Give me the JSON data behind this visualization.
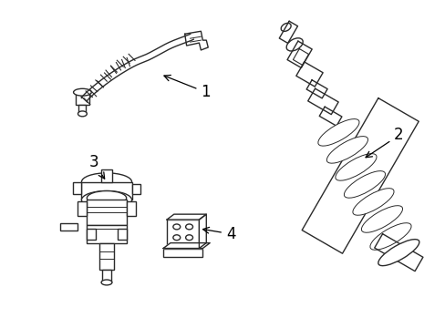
{
  "background_color": "#ffffff",
  "line_color": "#2a2a2a",
  "line_width": 1.0,
  "fig_w": 4.89,
  "fig_h": 3.6,
  "dpi": 100
}
